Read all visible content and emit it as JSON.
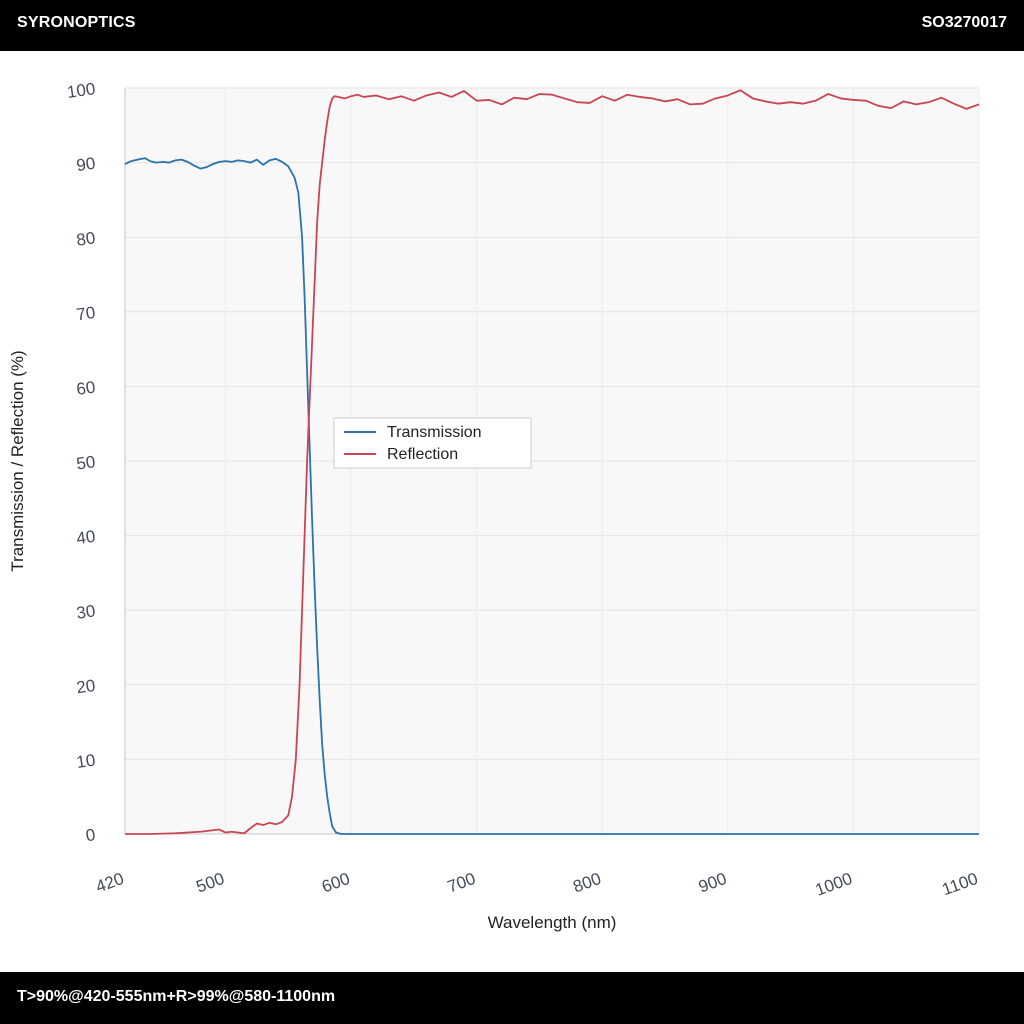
{
  "header": {
    "brand": "SYRONOPTICS",
    "part_number": "SO3270017"
  },
  "footer": {
    "spec": "T>90%@420-555nm+R>99%@580-1100nm"
  },
  "chart_data": {
    "type": "line",
    "title": "",
    "xlabel": "Wavelength (nm)",
    "ylabel": "Transmission / Reflection (%)",
    "xlim": [
      420,
      1100
    ],
    "ylim": [
      0,
      100
    ],
    "xticks": [
      420,
      500,
      600,
      700,
      800,
      900,
      1000,
      1100
    ],
    "yticks": [
      0,
      10,
      20,
      30,
      40,
      50,
      60,
      70,
      80,
      90,
      100
    ],
    "grid": true,
    "legend_position": "center-left",
    "series": [
      {
        "name": "Transmission",
        "color": "#2a72b0",
        "x": [
          420,
          425,
          430,
          436,
          440,
          445,
          450,
          455,
          460,
          465,
          470,
          475,
          480,
          485,
          490,
          495,
          500,
          505,
          510,
          515,
          520,
          525,
          530,
          535,
          540,
          545,
          550,
          555,
          558,
          561,
          563,
          565,
          567,
          569,
          571,
          573,
          575,
          577,
          579,
          581,
          583,
          585,
          588,
          592,
          600,
          650,
          700,
          750,
          800,
          850,
          900,
          950,
          1000,
          1050,
          1100
        ],
        "y": [
          89.8,
          90.2,
          90.4,
          90.6,
          90.2,
          90.0,
          90.1,
          90.0,
          90.3,
          90.4,
          90.1,
          89.6,
          89.2,
          89.4,
          89.8,
          90.1,
          90.2,
          90.1,
          90.3,
          90.2,
          90.0,
          90.4,
          89.7,
          90.3,
          90.5,
          90.1,
          89.5,
          88.0,
          86.0,
          80.0,
          72.0,
          62.0,
          52.0,
          42.0,
          33.0,
          25.0,
          18.0,
          12.0,
          8.0,
          5.0,
          2.8,
          1.0,
          0.2,
          0.0,
          0.0,
          0.0,
          0.0,
          0.0,
          0.0,
          0.0,
          0.0,
          0.0,
          0.0,
          0.0,
          0.0
        ]
      },
      {
        "name": "Reflection",
        "color": "#c94554",
        "x": [
          420,
          440,
          460,
          480,
          490,
          495,
          500,
          505,
          510,
          515,
          520,
          525,
          530,
          535,
          540,
          545,
          550,
          553,
          556,
          559,
          561,
          563,
          565,
          567,
          569,
          571,
          573,
          575,
          577,
          579,
          581,
          583,
          585,
          587,
          590,
          595,
          600,
          605,
          610,
          620,
          630,
          640,
          650,
          660,
          670,
          680,
          690,
          700,
          710,
          720,
          730,
          740,
          750,
          760,
          770,
          780,
          790,
          800,
          810,
          820,
          830,
          840,
          850,
          860,
          870,
          880,
          890,
          900,
          910,
          920,
          930,
          940,
          950,
          960,
          970,
          980,
          990,
          1000,
          1010,
          1020,
          1030,
          1040,
          1050,
          1060,
          1070,
          1080,
          1090,
          1100
        ],
        "y": [
          0.0,
          0.0,
          0.1,
          0.3,
          0.5,
          0.6,
          0.2,
          0.3,
          0.2,
          0.1,
          0.8,
          1.4,
          1.2,
          1.5,
          1.3,
          1.6,
          2.5,
          5.0,
          10.0,
          20.0,
          30.0,
          40.0,
          50.0,
          58.0,
          66.0,
          74.0,
          82.0,
          87.0,
          90.0,
          93.0,
          95.5,
          97.5,
          98.6,
          98.9,
          98.8,
          98.6,
          98.9,
          99.1,
          98.8,
          99.0,
          98.5,
          98.9,
          98.3,
          99.0,
          99.4,
          98.8,
          99.6,
          98.3,
          98.4,
          97.8,
          98.7,
          98.5,
          99.2,
          99.1,
          98.6,
          98.1,
          98.0,
          98.9,
          98.3,
          99.1,
          98.8,
          98.6,
          98.2,
          98.5,
          97.8,
          97.9,
          98.6,
          99.0,
          99.7,
          98.6,
          98.2,
          97.9,
          98.1,
          97.9,
          98.3,
          99.2,
          98.6,
          98.4,
          98.3,
          97.6,
          97.3,
          98.2,
          97.8,
          98.1,
          98.7,
          97.9,
          97.2,
          97.8
        ]
      }
    ]
  }
}
